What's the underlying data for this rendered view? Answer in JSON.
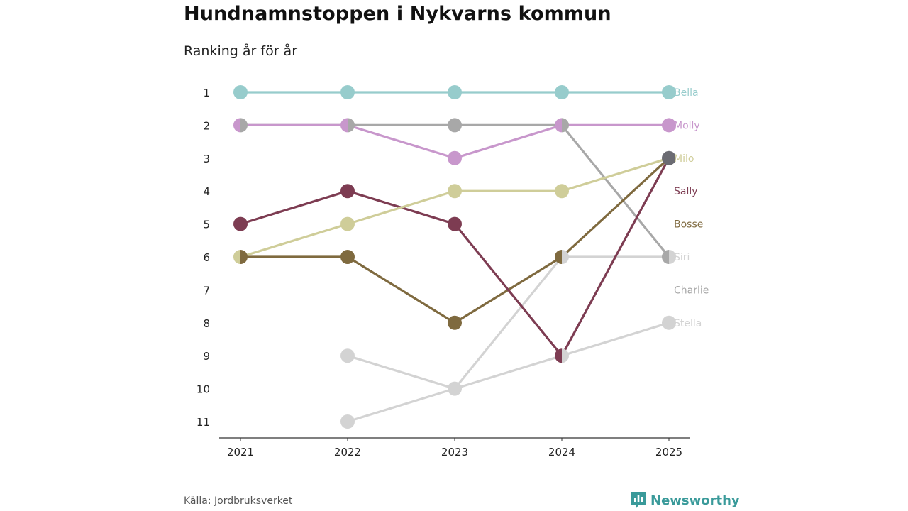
{
  "title": "Hundnamnstoppen i Nykvarns kommun",
  "subtitle": "Ranking år för år",
  "source": "Källa: Jordbruksverket",
  "brand": "Newsworthy",
  "chart_data": {
    "type": "line",
    "x": [
      "2021",
      "2022",
      "2023",
      "2024",
      "2025"
    ],
    "y_ticks": [
      1,
      2,
      3,
      4,
      5,
      6,
      7,
      8,
      9,
      10,
      11
    ],
    "ylim": [
      1,
      11
    ],
    "y_reversed": true,
    "grid": false,
    "series": [
      {
        "name": "Stella",
        "color": "#d3d3d3",
        "values": [
          null,
          11,
          10,
          9,
          8
        ]
      },
      {
        "name": "Siri",
        "color": "#d3d3d3",
        "values": [
          null,
          9,
          10,
          6,
          6
        ]
      },
      {
        "name": "Charlie",
        "color": "#a8a8a8",
        "values": [
          2,
          2,
          2,
          2,
          6
        ]
      },
      {
        "name": "Bosse",
        "color": "#7f6a3f",
        "values": [
          6,
          6,
          8,
          6,
          3
        ]
      },
      {
        "name": "Sally",
        "color": "#7d3c52",
        "values": [
          5,
          4,
          5,
          9,
          3
        ]
      },
      {
        "name": "Milo",
        "color": "#cfcd99",
        "values": [
          6,
          5,
          4,
          4,
          3
        ]
      },
      {
        "name": "Molly",
        "color": "#c897cc",
        "values": [
          2,
          2,
          3,
          2,
          2
        ]
      },
      {
        "name": "Bella",
        "color": "#97cccc",
        "values": [
          1,
          1,
          1,
          1,
          1
        ]
      }
    ],
    "end_labels": [
      {
        "name": "Bella",
        "rank": 1,
        "color": "#97cccc"
      },
      {
        "name": "Molly",
        "rank": 2,
        "color": "#c897cc"
      },
      {
        "name": "Milo",
        "rank": 3,
        "color": "#cfcd99"
      },
      {
        "name": "Sally",
        "rank": 4,
        "color": "#7d3c52"
      },
      {
        "name": "Bosse",
        "rank": 5,
        "color": "#7f6a3f"
      },
      {
        "name": "Siri",
        "rank": 6,
        "color": "#d3d3d3"
      },
      {
        "name": "Charlie",
        "rank": 7,
        "color": "#a8a8a8"
      },
      {
        "name": "Stella",
        "rank": 8,
        "color": "#d3d3d3"
      }
    ],
    "tie_color": "#6b6b72"
  }
}
